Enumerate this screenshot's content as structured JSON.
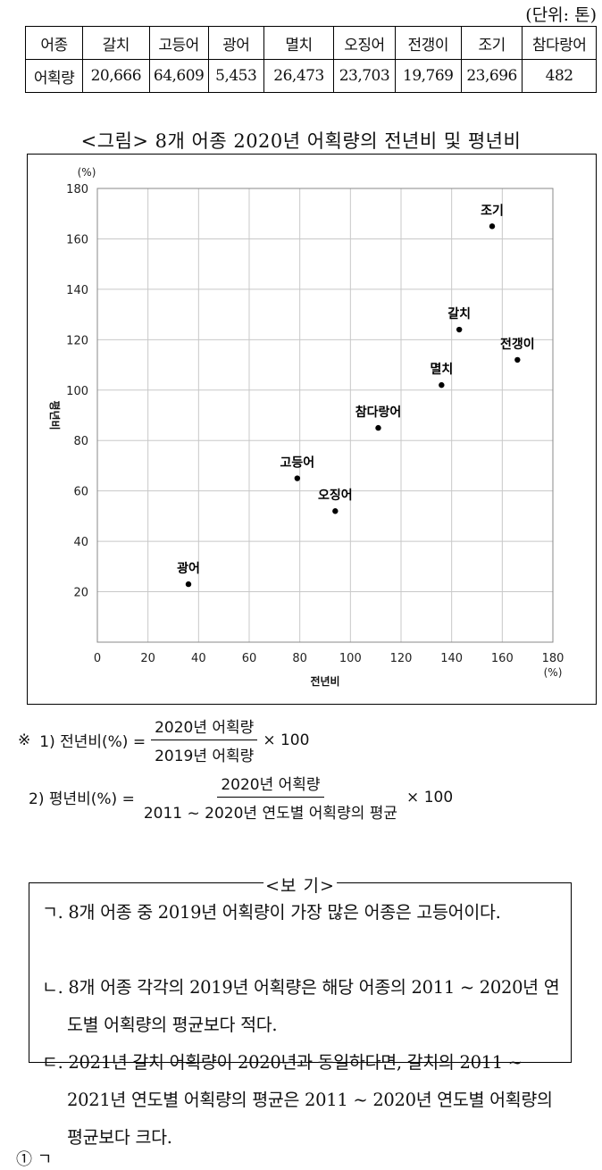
{
  "unit_label": "(단위: 톤)",
  "table": {
    "header": [
      "어종",
      "갈치",
      "고등어",
      "광어",
      "멸치",
      "오징어",
      "전갱이",
      "조기",
      "참다랑어"
    ],
    "row": [
      "어획량",
      "20,666",
      "64,609",
      "5,453",
      "26,473",
      "23,703",
      "19,769",
      "23,696",
      "482"
    ]
  },
  "figure_title": "<그림> 8개 어종 2020년 어획량의 전년비 및 평년비",
  "chart_data": {
    "type": "scatter",
    "xlabel": "전년비",
    "ylabel": "평년비",
    "x_unit": "(%)",
    "y_unit": "(%)",
    "xlim": [
      0,
      180
    ],
    "ylim": [
      0,
      180
    ],
    "x_ticks": [
      0,
      20,
      40,
      60,
      80,
      100,
      120,
      140,
      160,
      180
    ],
    "y_ticks": [
      20,
      40,
      60,
      80,
      100,
      120,
      140,
      160,
      180
    ],
    "grid": true,
    "points": [
      {
        "label": "갈치",
        "x": 143,
        "y": 124
      },
      {
        "label": "고등어",
        "x": 79,
        "y": 65
      },
      {
        "label": "광어",
        "x": 36,
        "y": 23
      },
      {
        "label": "멸치",
        "x": 136,
        "y": 102
      },
      {
        "label": "오징어",
        "x": 94,
        "y": 52
      },
      {
        "label": "전갱이",
        "x": 166,
        "y": 112
      },
      {
        "label": "조기",
        "x": 156,
        "y": 165
      },
      {
        "label": "참다랑어",
        "x": 111,
        "y": 85
      }
    ]
  },
  "notes": {
    "mark": "※",
    "n1": {
      "prefix": "1) 전년비(%) =",
      "num": "2020년 어획량",
      "den": "2019년 어획량",
      "suffix": "× 100"
    },
    "n2": {
      "prefix": "2) 평년비(%) =",
      "num": "2020년 어획량",
      "den": "2011 ~ 2020년 연도별 어획량의 평균",
      "suffix": "× 100"
    }
  },
  "bogi": {
    "title": "<보  기>",
    "items": [
      "ㄱ. 8개 어종 중 2019년 어획량이 가장 많은 어종은 고등어이다.",
      "ㄴ. 8개 어종 각각의 2019년 어획량은 해당 어종의 2011 ~ 2020년 연도별 어획량의 평균보다 적다.",
      "ㄷ. 2021년 갈치 어획량이 2020년과 동일하다면, 갈치의 2011 ~ 2021년 연도별 어획량의 평균은 2011 ~ 2020년 연도별 어획량의 평균보다 크다."
    ]
  },
  "answer_first": "① ㄱ"
}
